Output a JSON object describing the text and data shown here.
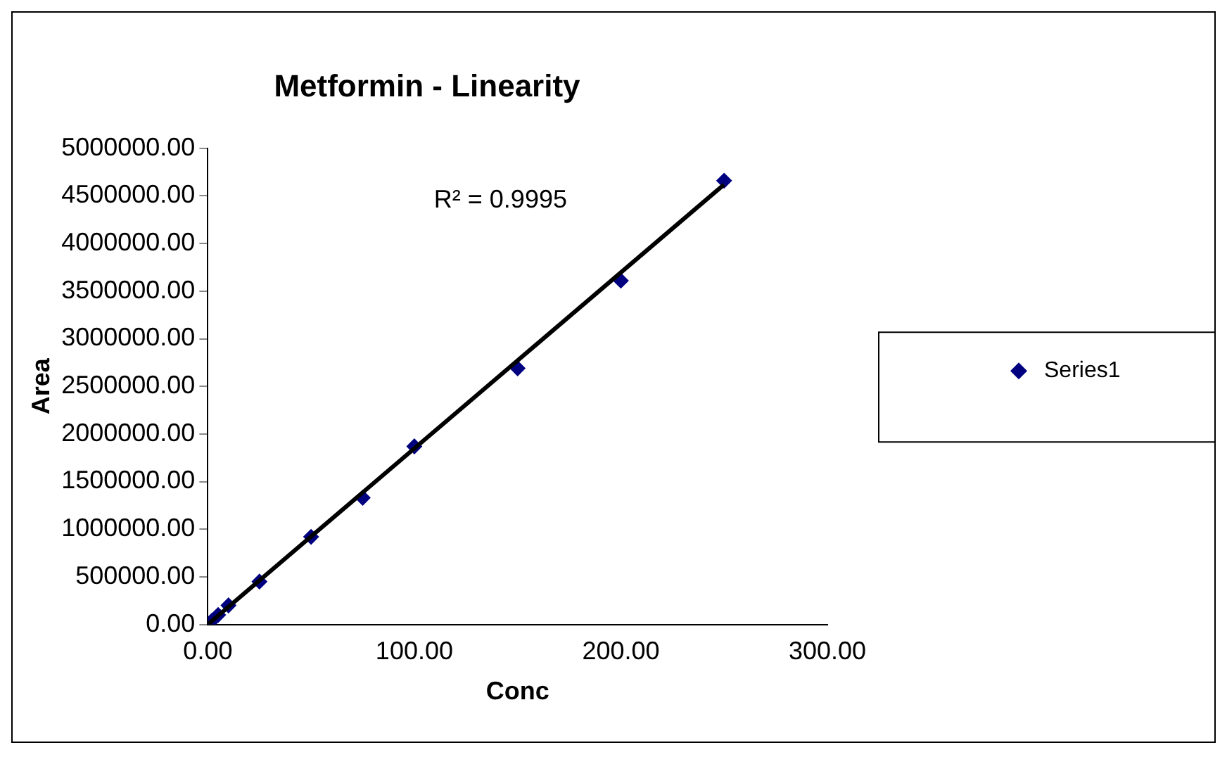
{
  "chart_data": {
    "type": "scatter",
    "title": "Metformin - Linearity",
    "xlabel": "Conc",
    "ylabel": "Area",
    "series": [
      {
        "name": "Series1",
        "color": "#000080",
        "x": [
          2,
          5,
          10,
          25,
          50,
          75,
          100,
          150,
          200,
          250
        ],
        "values": [
          40000,
          100000,
          200000,
          450000,
          920000,
          1330000,
          1870000,
          2690000,
          3610000,
          4660000
        ]
      },
      {
        "type": "line",
        "marker": "none",
        "color": "#000000",
        "x": [
          0,
          250
        ],
        "values": [
          0,
          4620000
        ]
      }
    ],
    "annotations": [
      "R² = 0.9995"
    ],
    "xlim": [
      0,
      300
    ],
    "ylim": [
      0,
      5000000
    ],
    "xticks": [
      {
        "value": 0,
        "label": "0.00"
      },
      {
        "value": 100,
        "label": "100.00"
      },
      {
        "value": 200,
        "label": "200.00"
      },
      {
        "value": 300,
        "label": "300.00"
      }
    ],
    "yticks": [
      {
        "value": 0,
        "label": "0.00"
      },
      {
        "value": 500000,
        "label": "500000.00"
      },
      {
        "value": 1000000,
        "label": "1000000.00"
      },
      {
        "value": 1500000,
        "label": "1500000.00"
      },
      {
        "value": 2000000,
        "label": "2000000.00"
      },
      {
        "value": 2500000,
        "label": "2500000.00"
      },
      {
        "value": 3000000,
        "label": "3000000.00"
      },
      {
        "value": 3500000,
        "label": "3500000.00"
      },
      {
        "value": 4000000,
        "label": "4000000.00"
      },
      {
        "value": 4500000,
        "label": "4500000.00"
      },
      {
        "value": 5000000,
        "label": "5000000.00"
      }
    ],
    "grid": false,
    "legend": "right",
    "marker": "diamond"
  }
}
